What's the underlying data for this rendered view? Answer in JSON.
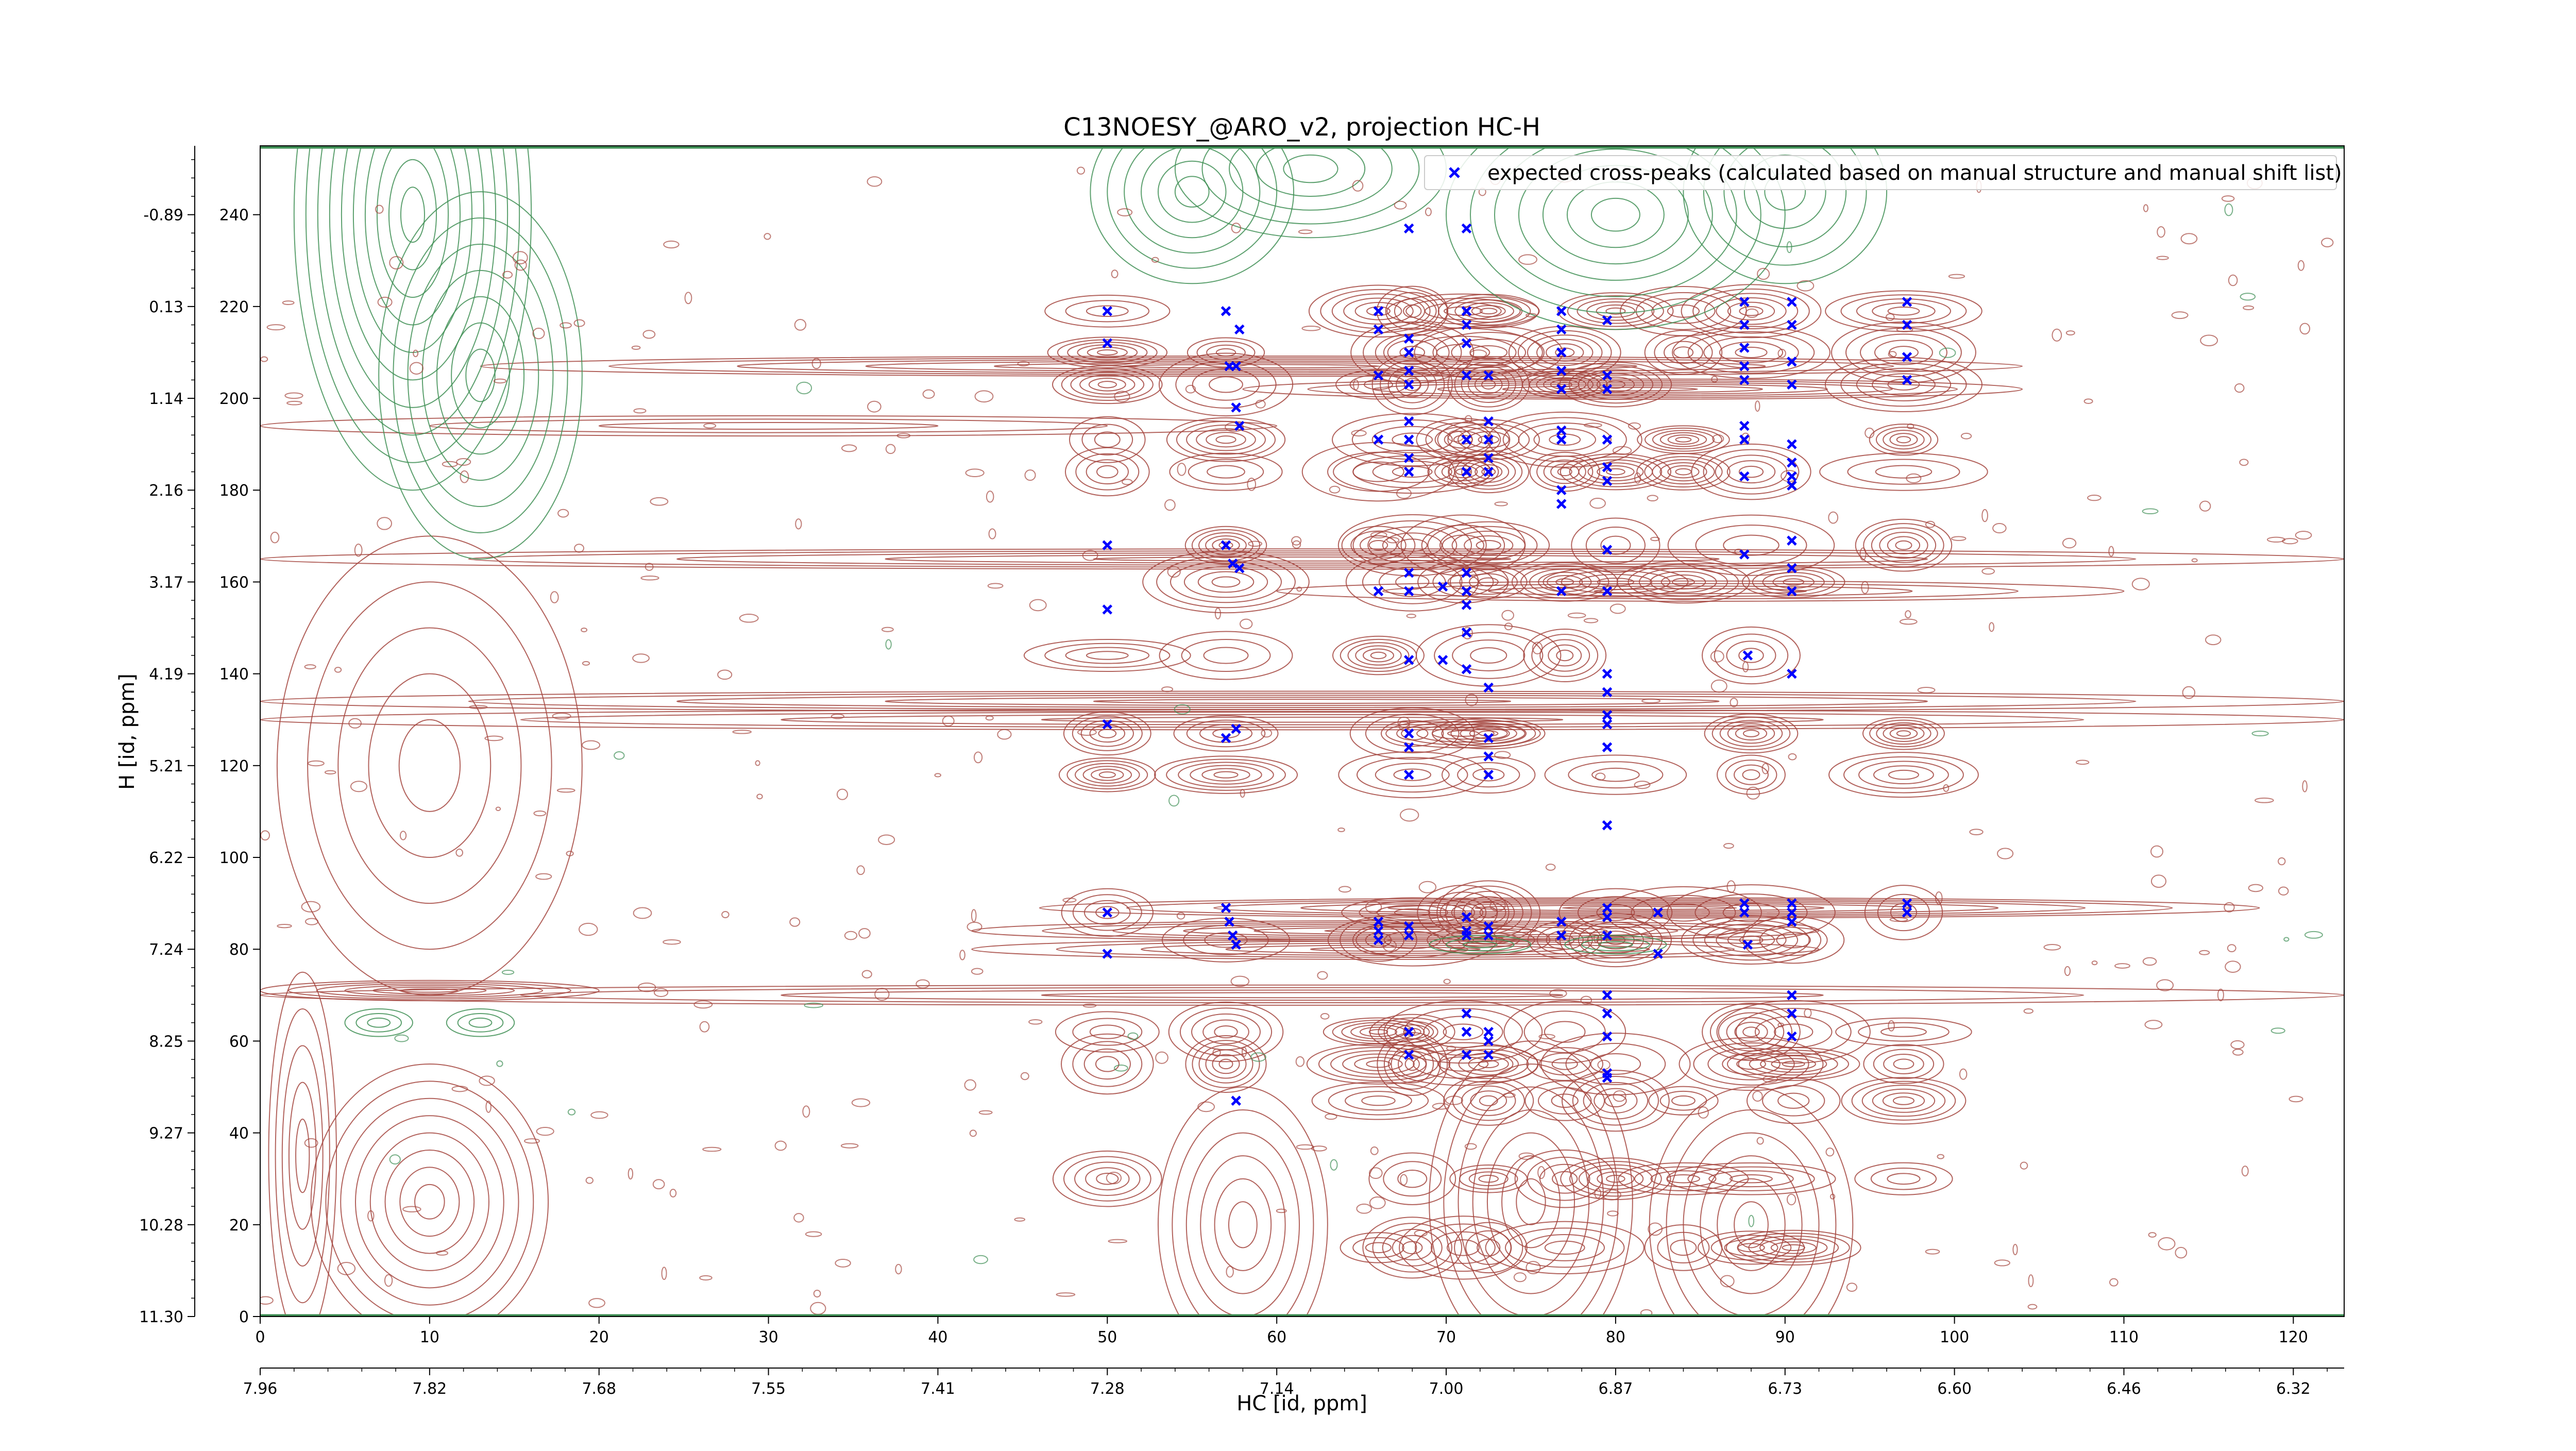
{
  "chart_data": {
    "type": "scatter",
    "title": "C13NOESY_@ARO_v2, projection HC-H",
    "xlabel": "HC [id, ppm]",
    "ylabel": "H [id, ppm]",
    "xlim": [
      0,
      123
    ],
    "ylim": [
      0,
      255
    ],
    "x_ticks": [
      0,
      10,
      20,
      30,
      40,
      50,
      60,
      70,
      80,
      90,
      100,
      110,
      120
    ],
    "y_ticks": [
      0,
      20,
      40,
      60,
      80,
      100,
      120,
      140,
      160,
      180,
      200,
      220,
      240
    ],
    "x_ppm_ticks": [
      "7.96",
      "7.82",
      "7.68",
      "7.55",
      "7.41",
      "7.28",
      "7.14",
      "7.00",
      "6.87",
      "6.73",
      "6.60",
      "6.46",
      "6.32"
    ],
    "y_ppm_ticks": [
      "11.30",
      "10.28",
      "9.27",
      "8.25",
      "7.24",
      "6.22",
      "5.21",
      "4.19",
      "3.17",
      "2.16",
      "1.14",
      "0.13",
      "-0.89"
    ],
    "grid": false,
    "legend": {
      "placement": "top-right",
      "entries": [
        "expected cross-peaks (calculated based on manual structure and manual shift list)"
      ]
    },
    "series": [
      {
        "name": "expected cross-peaks (calculated based on manual structure and manual shift list)",
        "color": "#0000ff",
        "marker": "x",
        "points": [
          [
            67.8,
            237
          ],
          [
            71.2,
            237
          ],
          [
            50,
            219
          ],
          [
            50,
            212
          ],
          [
            57,
            219
          ],
          [
            57.2,
            207
          ],
          [
            57.6,
            207
          ],
          [
            57.8,
            215
          ],
          [
            57.6,
            198
          ],
          [
            57.8,
            194
          ],
          [
            66,
            219
          ],
          [
            66,
            215
          ],
          [
            66,
            205
          ],
          [
            66,
            191
          ],
          [
            67.8,
            213
          ],
          [
            67.8,
            210
          ],
          [
            67.8,
            206
          ],
          [
            67.8,
            203
          ],
          [
            67.8,
            195
          ],
          [
            67.8,
            191
          ],
          [
            67.8,
            187
          ],
          [
            67.8,
            184
          ],
          [
            71.2,
            219
          ],
          [
            71.2,
            216
          ],
          [
            71.2,
            212
          ],
          [
            71.2,
            205
          ],
          [
            71.2,
            191
          ],
          [
            71.2,
            184
          ],
          [
            72.5,
            205
          ],
          [
            72.5,
            195
          ],
          [
            72.5,
            191
          ],
          [
            72.5,
            187
          ],
          [
            72.5,
            184
          ],
          [
            76.8,
            219
          ],
          [
            76.8,
            215
          ],
          [
            76.8,
            210
          ],
          [
            76.8,
            206
          ],
          [
            76.8,
            202
          ],
          [
            76.8,
            193
          ],
          [
            76.8,
            191
          ],
          [
            76.8,
            180
          ],
          [
            76.8,
            177
          ],
          [
            79.5,
            217
          ],
          [
            79.5,
            205
          ],
          [
            79.5,
            202
          ],
          [
            79.5,
            191
          ],
          [
            79.5,
            185
          ],
          [
            79.5,
            182
          ],
          [
            87.6,
            221
          ],
          [
            87.6,
            216
          ],
          [
            87.6,
            211
          ],
          [
            87.6,
            207
          ],
          [
            87.6,
            204
          ],
          [
            87.6,
            194
          ],
          [
            87.6,
            191
          ],
          [
            87.6,
            183
          ],
          [
            90.4,
            221
          ],
          [
            90.4,
            216
          ],
          [
            90.4,
            208
          ],
          [
            90.4,
            203
          ],
          [
            90.4,
            190
          ],
          [
            90.4,
            186
          ],
          [
            90.4,
            183
          ],
          [
            90.4,
            181
          ],
          [
            97.2,
            221
          ],
          [
            97.2,
            216
          ],
          [
            97.2,
            209
          ],
          [
            97.2,
            204
          ],
          [
            50,
            168
          ],
          [
            57,
            168
          ],
          [
            57.4,
            164
          ],
          [
            57.8,
            163
          ],
          [
            50,
            154
          ],
          [
            66,
            158
          ],
          [
            67.8,
            162
          ],
          [
            67.8,
            158
          ],
          [
            69.8,
            159
          ],
          [
            71.2,
            162
          ],
          [
            71.2,
            158
          ],
          [
            71.2,
            155
          ],
          [
            71.2,
            149
          ],
          [
            76.8,
            158
          ],
          [
            79.5,
            167
          ],
          [
            79.5,
            158
          ],
          [
            87.6,
            166
          ],
          [
            90.4,
            169
          ],
          [
            90.4,
            163
          ],
          [
            90.4,
            158
          ],
          [
            87.8,
            144
          ],
          [
            90.4,
            140
          ],
          [
            67.8,
            143
          ],
          [
            69.8,
            143
          ],
          [
            71.2,
            141
          ],
          [
            72.5,
            137
          ],
          [
            79.5,
            140
          ],
          [
            79.5,
            136
          ],
          [
            79.5,
            131
          ],
          [
            79.5,
            129
          ],
          [
            79.5,
            124
          ],
          [
            67.8,
            127
          ],
          [
            67.8,
            124
          ],
          [
            67.8,
            118
          ],
          [
            72.5,
            126
          ],
          [
            72.5,
            122
          ],
          [
            72.5,
            118
          ],
          [
            50,
            129
          ],
          [
            57,
            126
          ],
          [
            57.6,
            128
          ],
          [
            79.5,
            107
          ],
          [
            50,
            88
          ],
          [
            57,
            89
          ],
          [
            57.2,
            86
          ],
          [
            57.4,
            83
          ],
          [
            57.6,
            81
          ],
          [
            66,
            86
          ],
          [
            66,
            84
          ],
          [
            66,
            82
          ],
          [
            67.8,
            85
          ],
          [
            67.8,
            83
          ],
          [
            71.2,
            87
          ],
          [
            71.2,
            84
          ],
          [
            71.2,
            83
          ],
          [
            72.5,
            85
          ],
          [
            72.5,
            83
          ],
          [
            76.8,
            86
          ],
          [
            76.8,
            83
          ],
          [
            79.5,
            89
          ],
          [
            79.5,
            87
          ],
          [
            79.5,
            83
          ],
          [
            82.5,
            88
          ],
          [
            82.5,
            79
          ],
          [
            50,
            79
          ],
          [
            87.6,
            90
          ],
          [
            87.6,
            88
          ],
          [
            87.8,
            81
          ],
          [
            90.4,
            90
          ],
          [
            90.4,
            88
          ],
          [
            90.4,
            86
          ],
          [
            97.2,
            90
          ],
          [
            97.2,
            88
          ],
          [
            67.8,
            62
          ],
          [
            67.8,
            57
          ],
          [
            71.2,
            66
          ],
          [
            71.2,
            62
          ],
          [
            71.2,
            57
          ],
          [
            72.5,
            62
          ],
          [
            72.5,
            60
          ],
          [
            72.5,
            57
          ],
          [
            79.5,
            70
          ],
          [
            79.5,
            66
          ],
          [
            79.5,
            61
          ],
          [
            79.5,
            53
          ],
          [
            79.5,
            52
          ],
          [
            90.4,
            70
          ],
          [
            90.4,
            66
          ],
          [
            90.4,
            61
          ],
          [
            57.6,
            47
          ]
        ]
      }
    ]
  }
}
